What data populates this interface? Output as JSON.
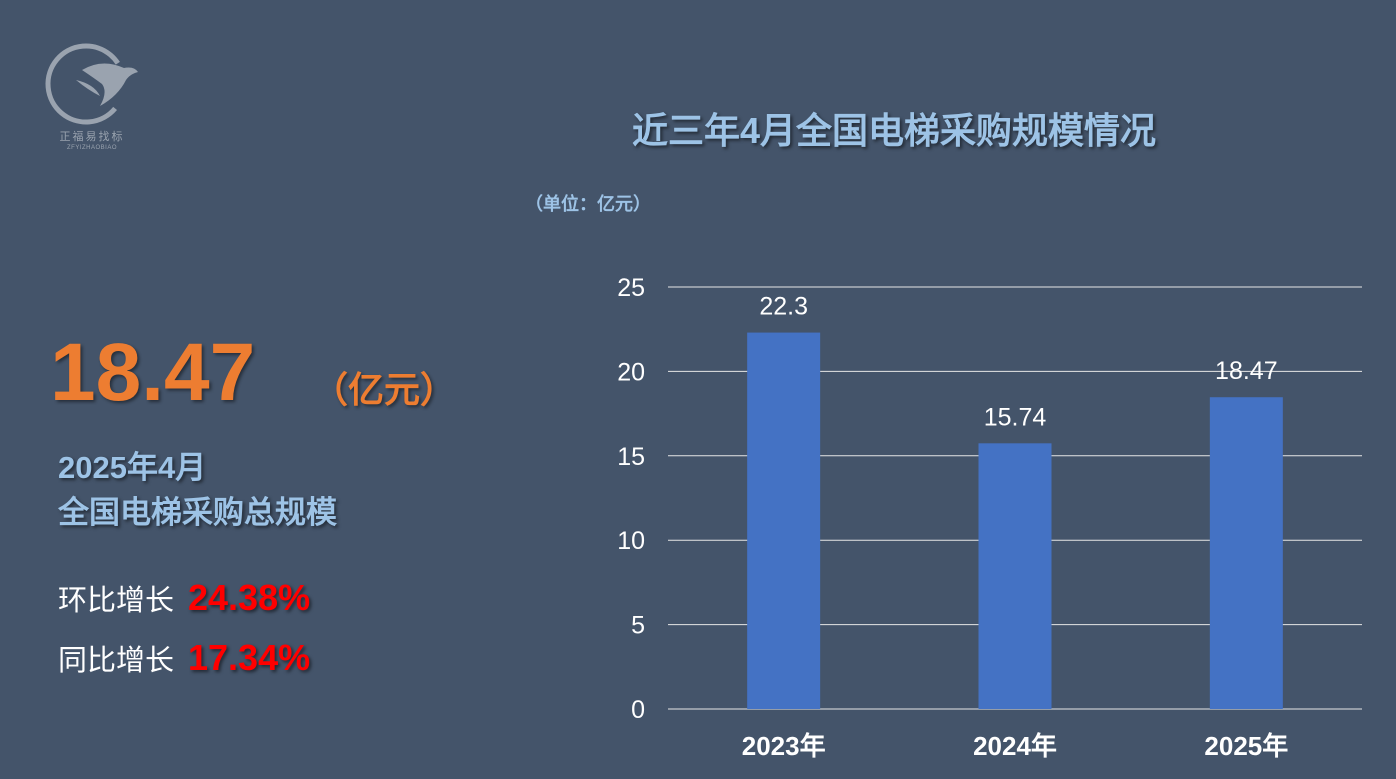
{
  "logo": {
    "icon": "eagle-logo-icon",
    "name": "正福易找标",
    "sub": "ZFYIZHAOBIAO"
  },
  "summary": {
    "value": "18.47",
    "unit": "（亿元）",
    "line1": "2025年4月",
    "line2": "全国电梯采购总规模",
    "mom_label": "环比增长",
    "mom_value": "24.38%",
    "yoy_label": "同比增长",
    "yoy_value": "17.34%"
  },
  "colors": {
    "background": "#44546a",
    "accent_orange": "#ed7d31",
    "label_blue": "#9dc3e6",
    "growth_red": "#ff0000",
    "bar_blue": "#4472c4"
  },
  "chart_data": {
    "type": "bar",
    "title": "近三年4月全国电梯采购规模情况",
    "unit_note": "（单位：亿元）",
    "categories": [
      "2023年",
      "2024年",
      "2025年"
    ],
    "values": [
      22.3,
      15.74,
      18.47
    ],
    "value_labels": [
      "22.3",
      "15.74",
      "18.47"
    ],
    "ylim": [
      0,
      25
    ],
    "yticks": [
      0,
      5,
      10,
      15,
      20,
      25
    ],
    "grid": true,
    "legend": "none"
  }
}
